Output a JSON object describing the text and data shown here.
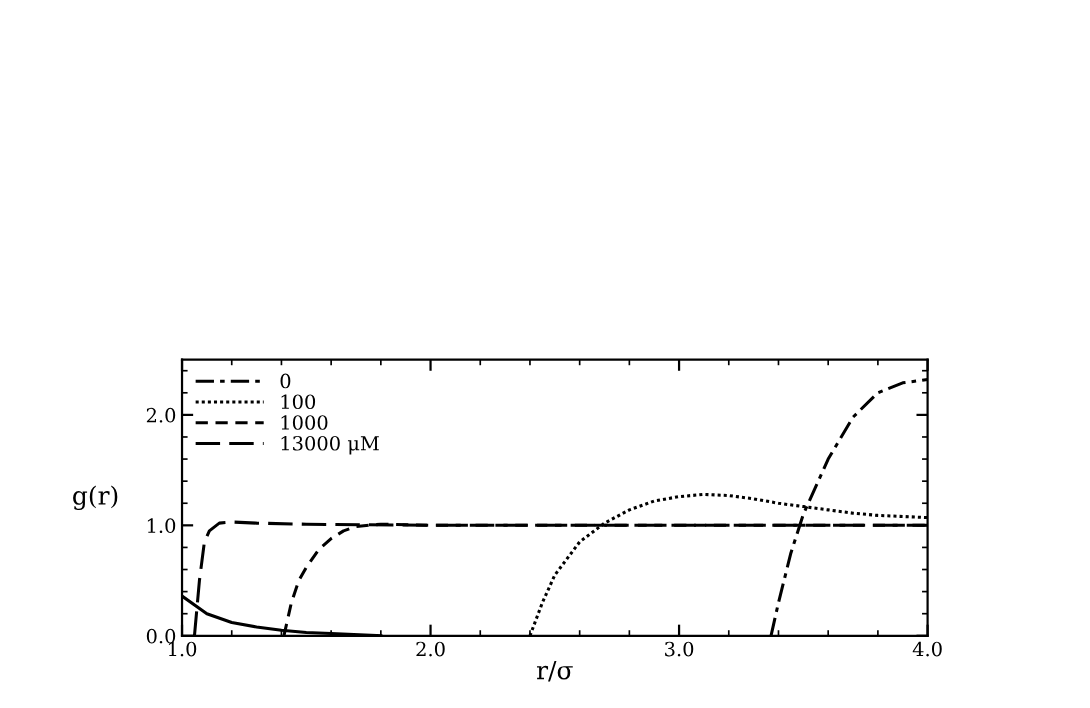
{
  "chart_data": {
    "type": "line",
    "xlabel": "r/σ",
    "ylabel": "g(r)",
    "xlim": [
      1.0,
      4.0
    ],
    "ylim": [
      0.0,
      2.5
    ],
    "xticks": [
      {
        "value": 1.0,
        "label": "1.0"
      },
      {
        "value": 2.0,
        "label": "2.0"
      },
      {
        "value": 3.0,
        "label": "3.0"
      },
      {
        "value": 4.0,
        "label": "4.0"
      }
    ],
    "yticks": [
      {
        "value": 0.0,
        "label": "0.0"
      },
      {
        "value": 1.0,
        "label": "1.0"
      },
      {
        "value": 2.0,
        "label": "2.0"
      }
    ],
    "grid": false,
    "legend": "top left",
    "marker": "none",
    "series": [
      {
        "name": "0",
        "color": "#000000",
        "line_style": "dashdot",
        "x": [
          3.37,
          3.4,
          3.45,
          3.5,
          3.6,
          3.7,
          3.8,
          3.9,
          4.0
        ],
        "values": [
          0,
          0.3,
          0.75,
          1.1,
          1.6,
          1.98,
          2.2,
          2.29,
          2.32
        ]
      },
      {
        "name": "100",
        "color": "#000000",
        "line_style": "dotted",
        "x": [
          2.4,
          2.45,
          2.5,
          2.6,
          2.7,
          2.8,
          2.9,
          3.0,
          3.1,
          3.2,
          3.3,
          3.4,
          3.5,
          3.6,
          3.7,
          3.8,
          3.9,
          4.0
        ],
        "values": [
          0,
          0.3,
          0.55,
          0.85,
          1.02,
          1.14,
          1.22,
          1.26,
          1.28,
          1.27,
          1.24,
          1.2,
          1.17,
          1.14,
          1.11,
          1.09,
          1.08,
          1.07
        ]
      },
      {
        "name": "1000",
        "color": "#000000",
        "line_style": "dashed",
        "x": [
          1.41,
          1.44,
          1.47,
          1.5,
          1.55,
          1.6,
          1.65,
          1.7,
          1.8,
          2.0,
          4.0
        ],
        "values": [
          0,
          0.3,
          0.5,
          0.62,
          0.78,
          0.88,
          0.95,
          0.99,
          1.01,
          1.0,
          1.0
        ]
      },
      {
        "name": "13000 μM",
        "color": "#000000",
        "line_style": "longdash",
        "x": [
          1.05,
          1.07,
          1.09,
          1.11,
          1.15,
          1.2,
          1.3,
          1.5,
          2.0,
          4.0
        ],
        "values": [
          0,
          0.5,
          0.85,
          0.95,
          1.02,
          1.03,
          1.02,
          1.01,
          1.0,
          1.0
        ]
      },
      {
        "color": "#000000",
        "line_style": "solid",
        "x": [
          1.0,
          1.1,
          1.2,
          1.3,
          1.4,
          1.5,
          1.6,
          1.8
        ],
        "values": [
          0.36,
          0.2,
          0.12,
          0.08,
          0.05,
          0.03,
          0.02,
          0.0
        ]
      }
    ]
  }
}
